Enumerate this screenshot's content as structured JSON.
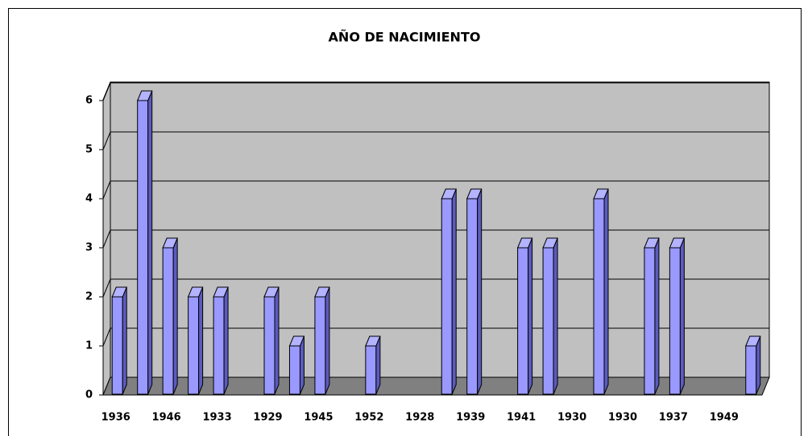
{
  "chart_data": {
    "type": "bar3d",
    "title": "AÑO DE NACIMIENTO",
    "categories": [
      "1936",
      null,
      "1946",
      null,
      "1933",
      null,
      "1929",
      null,
      "1945",
      null,
      "1952",
      null,
      "1928",
      null,
      "1939",
      null,
      "1941",
      null,
      "1930",
      null,
      "1930",
      null,
      "1937",
      null,
      "1949",
      null
    ],
    "values": [
      2,
      6,
      3,
      2,
      2,
      null,
      2,
      1,
      2,
      null,
      1,
      null,
      null,
      4,
      4,
      null,
      3,
      3,
      null,
      4,
      null,
      3,
      3,
      null,
      null,
      1
    ],
    "color": "#9999ff",
    "ylim": [
      0,
      6
    ],
    "yticks": [
      0,
      1,
      2,
      3,
      4,
      5,
      6
    ],
    "grid": true
  }
}
